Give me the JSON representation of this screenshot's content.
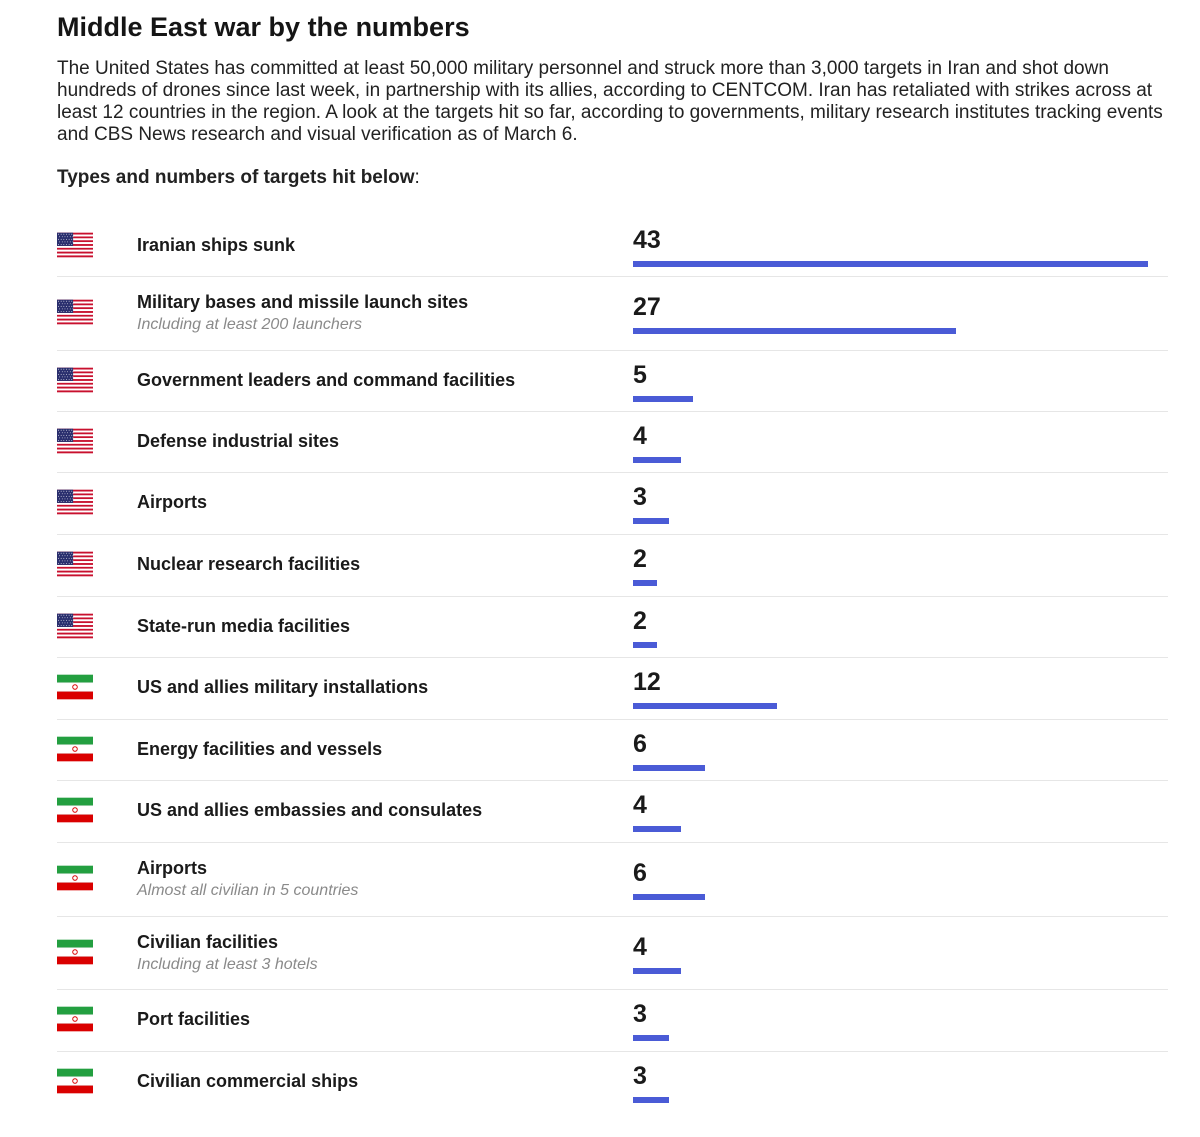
{
  "header": {
    "title": "Middle East war by the numbers",
    "intro": "The United States has committed at least 50,000 military personnel and struck more than 3,000 targets in Iran and shot down hundreds of drones since last week, in partnership with its allies, according to CENTCOM. Iran has retaliated with strikes across at least 12 countries in the region. A look at the targets hit so far, according to governments, military research institutes tracking events and CBS News research and visual verification as of March 6.",
    "subhead_bold": "Types and numbers of targets hit below",
    "subhead_suffix": ":"
  },
  "colors": {
    "bar": "#4a5bd6",
    "divider": "#e6e6e6",
    "note": "#8a8a8a"
  },
  "flags": {
    "us": "united-states-flag-icon",
    "iran": "iran-flag-icon"
  },
  "chart_data": {
    "type": "bar",
    "orientation": "horizontal",
    "title": "",
    "xlabel": "",
    "ylabel": "",
    "xlim": [
      0,
      43
    ],
    "grid": false,
    "legend": "none",
    "categories": [
      "Iranian ships sunk",
      "Military bases and missile launch sites",
      "Government leaders and command facilities",
      "Defense industrial sites",
      "Airports",
      "Nuclear research facilities",
      "State-run media facilities",
      "US and allies military installations",
      "Energy facilities and vessels",
      "US and allies embassies and consulates",
      "Airports",
      "Civilian facilities",
      "Port facilities",
      "Civilian commercial ships"
    ],
    "values": [
      43,
      27,
      5,
      4,
      3,
      2,
      2,
      12,
      6,
      4,
      6,
      4,
      3,
      3
    ],
    "notes": [
      "",
      "Including at least 200 launchers",
      "",
      "",
      "",
      "",
      "",
      "",
      "",
      "",
      "Almost all civilian in 5 countries",
      "Including at least 3 hotels",
      "",
      ""
    ],
    "flags": [
      "us",
      "us",
      "us",
      "us",
      "us",
      "us",
      "us",
      "iran",
      "iran",
      "iran",
      "iran",
      "iran",
      "iran",
      "iran"
    ]
  }
}
